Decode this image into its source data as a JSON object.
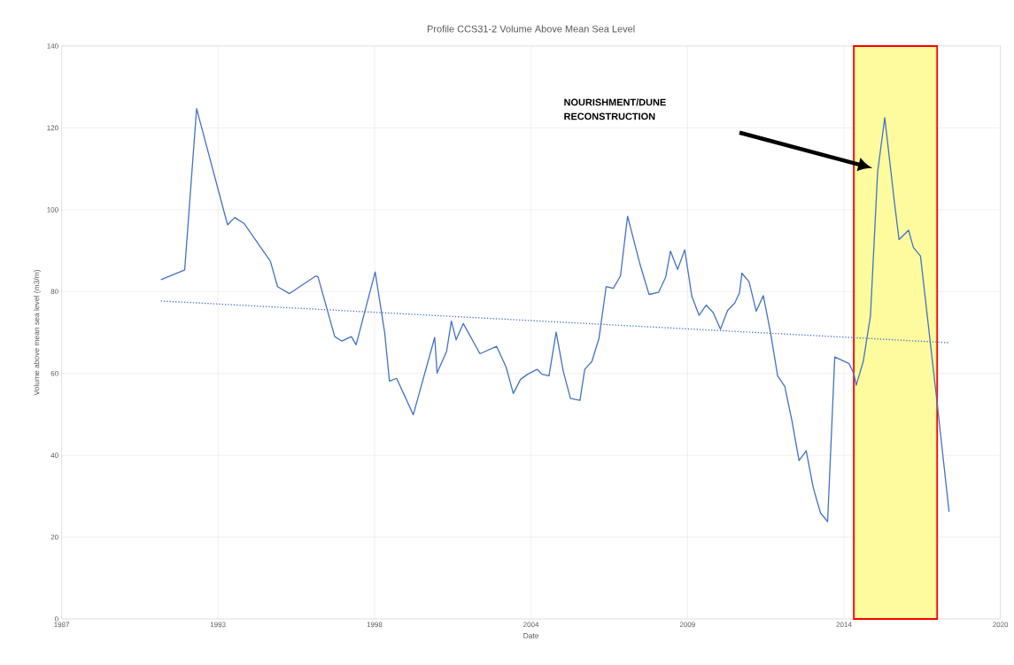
{
  "chart_data": {
    "type": "line",
    "title": "Profile CCS31-2 Volume Above Mean Sea Level",
    "xlabel": "Date",
    "ylabel": "Volume above mean sea level (m3/m)",
    "xlim": [
      "1987-08-11",
      "2020-06-18"
    ],
    "xticks": [
      {
        "value": "1987-08-11",
        "label": "1987"
      },
      {
        "value": "1993-01-31",
        "label": "1993"
      },
      {
        "value": "1998-07-24",
        "label": "1998"
      },
      {
        "value": "2004-01-14",
        "label": "2004"
      },
      {
        "value": "2009-07-06",
        "label": "2009"
      },
      {
        "value": "2014-12-27",
        "label": "2014"
      },
      {
        "value": "2020-06-18",
        "label": "2020"
      }
    ],
    "ylim": [
      0,
      140
    ],
    "yticks": [
      0,
      20,
      40,
      60,
      80,
      100,
      120,
      140
    ],
    "grid": true,
    "series": [
      {
        "color": "#4472c4",
        "x": [
          "1991-02",
          "1991-12",
          "1992-05",
          "1993-06",
          "1993-09",
          "1994-01",
          "1994-12",
          "1995-03",
          "1995-08",
          "1996-07",
          "1996-08",
          "1997-03",
          "1997-06",
          "1997-10",
          "1997-12",
          "1998-08",
          "1998-12",
          "1999-02",
          "1999-05",
          "1999-12",
          "2000-09",
          "2000-10",
          "2001-02",
          "2001-04",
          "2001-06",
          "2001-09",
          "2002-04",
          "2002-11",
          "2003-03",
          "2003-06",
          "2003-09",
          "2003-12",
          "2004-04",
          "2004-06",
          "2004-09",
          "2004-12",
          "2005-03",
          "2005-06",
          "2005-10",
          "2005-12",
          "2006-03",
          "2006-06",
          "2006-09",
          "2006-12",
          "2007-03",
          "2007-06",
          "2007-11",
          "2008-03",
          "2008-07",
          "2008-10",
          "2008-12",
          "2009-03",
          "2009-06",
          "2009-09",
          "2009-12",
          "2010-03",
          "2010-06",
          "2010-09",
          "2010-12",
          "2011-03",
          "2011-05",
          "2011-06",
          "2011-09",
          "2011-12",
          "2012-03",
          "2012-06",
          "2012-09",
          "2012-12",
          "2013-03",
          "2013-06",
          "2013-09",
          "2013-12",
          "2014-03",
          "2014-06",
          "2014-09",
          "2015-03",
          "2015-05",
          "2015-06",
          "2015-09",
          "2015-12",
          "2016-03",
          "2016-06",
          "2016-10",
          "2016-12",
          "2017-04",
          "2017-06",
          "2017-09",
          "2018-01",
          "2018-04",
          "2018-09"
        ],
        "values": [
          82.9,
          85.3,
          124.7,
          96.3,
          98.1,
          96.6,
          87.4,
          81.2,
          79.5,
          83.8,
          83.6,
          69.0,
          67.9,
          69.0,
          67.0,
          84.8,
          69.9,
          58.1,
          58.8,
          49.9,
          68.8,
          60.1,
          65.4,
          72.8,
          68.2,
          72.2,
          64.8,
          66.6,
          61.5,
          55.1,
          58.5,
          59.8,
          61.0,
          59.8,
          59.4,
          70.1,
          60.5,
          53.9,
          53.4,
          61.0,
          62.9,
          68.6,
          81.2,
          80.8,
          83.8,
          98.4,
          87.1,
          79.3,
          79.8,
          83.5,
          89.9,
          85.4,
          90.2,
          78.8,
          74.2,
          76.7,
          74.8,
          70.8,
          75.4,
          77.2,
          79.7,
          84.5,
          82.4,
          75.2,
          79.0,
          70.1,
          59.4,
          56.8,
          48.5,
          38.7,
          41.1,
          32.0,
          25.9,
          23.8,
          64.0,
          62.4,
          60.0,
          57.1,
          63.0,
          74.1,
          109.2,
          122.5,
          102.1,
          92.7,
          95.0,
          90.8,
          88.7,
          68.2,
          52.7,
          26.2
        ]
      },
      {
        "type": "line",
        "line_style": "dotted",
        "color": "#4472c4",
        "x": [
          "1991-02",
          "2018-09"
        ],
        "values": [
          77.7,
          67.5
        ]
      }
    ],
    "bands": [
      {
        "axis": "x",
        "from": "2015-05",
        "to": "2018-04",
        "color": "#fdfb9e"
      }
    ],
    "annotations": [
      "NOURISHMENT/DUNE RECONSTRUCTION"
    ]
  }
}
